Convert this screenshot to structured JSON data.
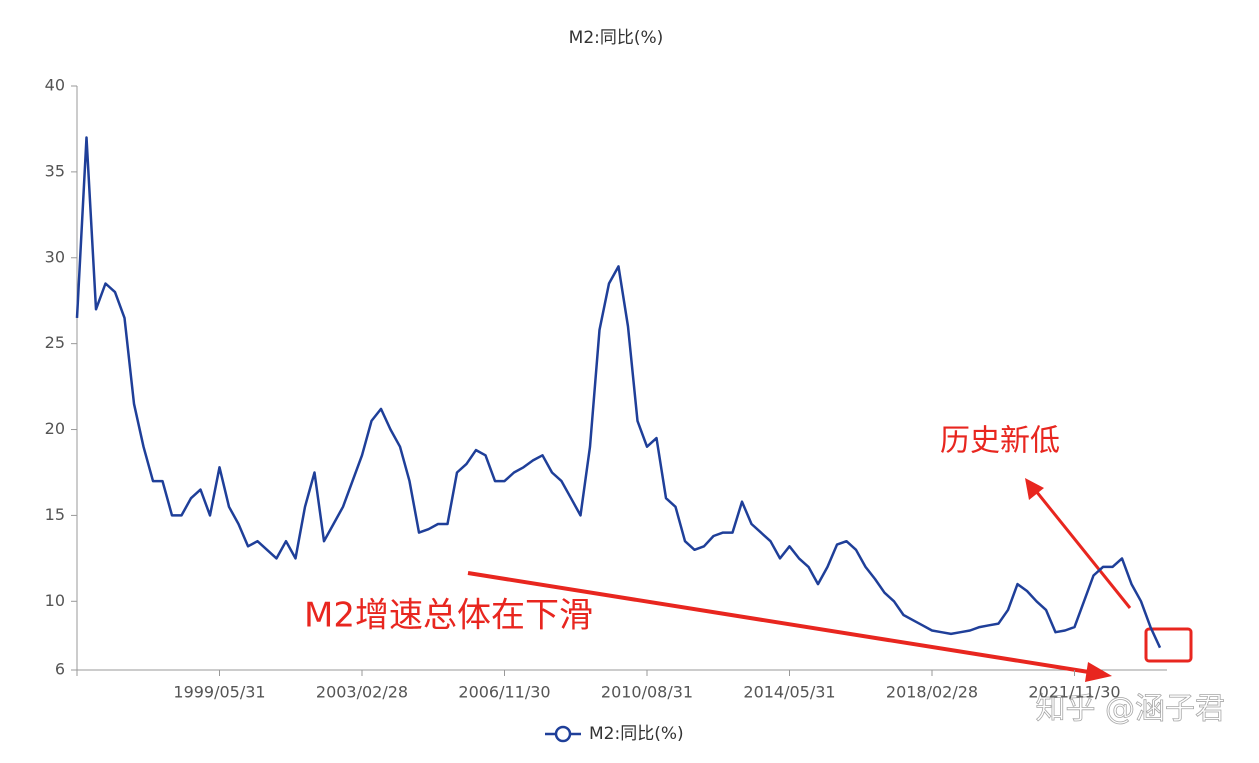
{
  "chart_data": {
    "type": "line",
    "title": "M2:同比(%)",
    "categories": [
      null,
      null,
      null,
      null,
      null,
      null,
      null,
      null,
      null,
      null,
      null,
      null,
      null,
      null,
      null,
      "1999/05/31",
      null,
      null,
      null,
      null,
      null,
      null,
      null,
      null,
      null,
      null,
      null,
      null,
      null,
      null,
      "2003/02/28",
      null,
      null,
      null,
      null,
      null,
      null,
      null,
      null,
      null,
      null,
      null,
      null,
      null,
      null,
      "2006/11/30",
      null,
      null,
      null,
      null,
      null,
      null,
      null,
      null,
      null,
      null,
      null,
      null,
      null,
      null,
      "2010/08/31",
      null,
      null,
      null,
      null,
      null,
      null,
      null,
      null,
      null,
      null,
      null,
      null,
      null,
      null,
      "2014/05/31",
      null,
      null,
      null,
      null,
      null,
      null,
      null,
      null,
      null,
      null,
      null,
      null,
      null,
      null,
      "2018/02/28",
      null,
      null,
      null,
      null,
      null,
      null,
      null,
      null,
      null,
      null,
      null,
      null,
      null,
      null,
      "2021/11/30",
      null,
      null,
      null,
      null,
      null,
      null,
      null,
      null,
      null
    ],
    "series": [
      {
        "name": "M2:同比(%)",
        "color": "#1f3f99",
        "values": [
          26.5,
          37,
          27,
          28.5,
          28,
          26.5,
          21.5,
          19,
          17,
          17,
          15,
          15,
          16,
          16.5,
          15,
          17.8,
          15.5,
          14.5,
          13.2,
          13.5,
          13,
          12.5,
          13.5,
          12.5,
          15.5,
          17.5,
          13.5,
          14.5,
          15.5,
          17,
          18.5,
          20.5,
          21.2,
          20,
          19,
          17,
          14,
          14.2,
          14.5,
          14.5,
          17.5,
          18,
          18.8,
          18.5,
          17,
          17,
          17.5,
          17.8,
          18.2,
          18.5,
          17.5,
          17,
          16,
          15,
          19,
          25.8,
          28.5,
          29.5,
          26,
          20.5,
          19,
          19.5,
          16,
          15.5,
          13.5,
          13,
          13.2,
          13.8,
          14,
          14,
          15.8,
          14.5,
          14,
          13.5,
          12.5,
          13.2,
          12.5,
          12,
          11,
          12,
          13.3,
          13.5,
          13,
          12,
          11.3,
          10.5,
          10,
          9.2,
          8.9,
          8.6,
          8.3,
          8.2,
          8.1,
          8.2,
          8.3,
          8.5,
          8.6,
          8.7,
          9.5,
          11,
          10.6,
          10,
          9.5,
          8.2,
          8.3,
          8.5,
          10,
          11.5,
          12,
          12,
          12.5,
          11,
          10,
          8.5,
          7.3
        ]
      }
    ],
    "ylim": [
      6,
      40
    ],
    "yticks": [
      6,
      10,
      15,
      20,
      25,
      30,
      35,
      40
    ],
    "grid": false,
    "legend": "bottom",
    "annotations": [
      "历史新低",
      "M2增速总体在下滑"
    ],
    "watermark": "知乎 @涵子君"
  }
}
